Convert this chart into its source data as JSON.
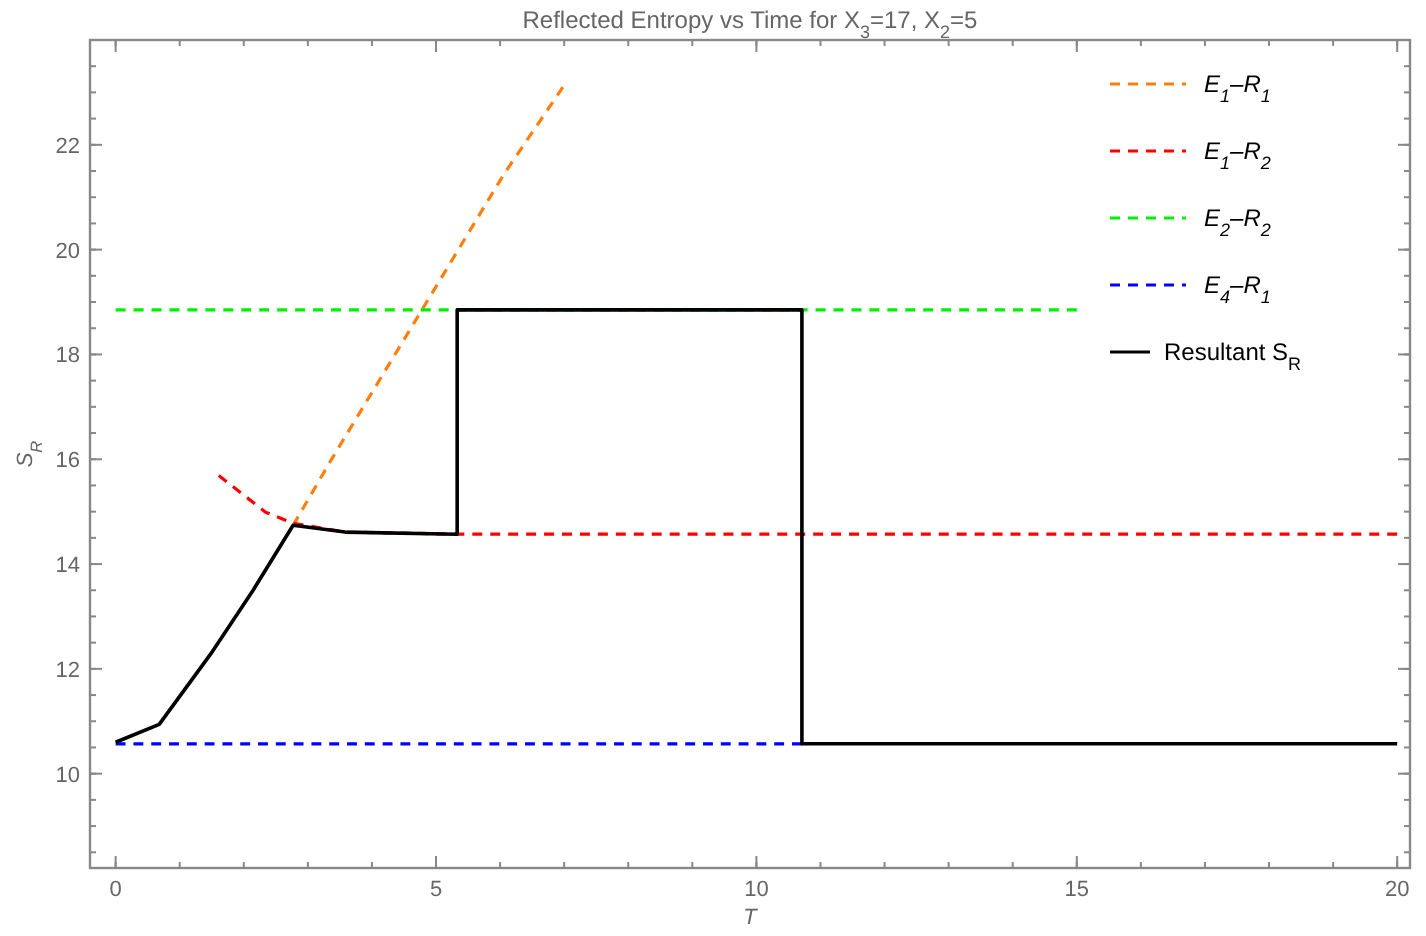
{
  "chart_data": {
    "type": "line",
    "title": "Reflected Entropy vs Time for X$_{3}$=17, X$_{2}$=5",
    "xlabel": "T",
    "ylabel": "S$_{R}$",
    "xlim": [
      -0.4,
      20.2
    ],
    "ylim": [
      8.2,
      24
    ],
    "xticks": [
      0,
      5,
      10,
      15,
      20
    ],
    "yticks": [
      10,
      12,
      14,
      16,
      18,
      20,
      22
    ],
    "grid": false,
    "legend": "top right",
    "series": [
      {
        "name": "E$_{1}$–R$_{1}$",
        "color": "#ff7f0e",
        "line_style": "dashed",
        "x": [
          2.77,
          3.37,
          4.82,
          6.06,
          6.98
        ],
        "values": [
          14.74,
          16.0,
          18.93,
          21.44,
          23.1
        ]
      },
      {
        "name": "E$_{1}$–R$_{2}$",
        "color": "#ff0000",
        "line_style": "dashed",
        "x": [
          1.61,
          2.34,
          2.77,
          3.58,
          5.33,
          20
        ],
        "values": [
          15.69,
          14.99,
          14.78,
          14.61,
          14.57,
          14.57
        ]
      },
      {
        "name": "E$_{2}$–R$_{2}$",
        "color": "#00ee00",
        "line_style": "dashed",
        "x": [
          0,
          15
        ],
        "values": [
          18.85,
          18.85
        ]
      },
      {
        "name": "E$_{4}$–R$_{1}$",
        "color": "#0000ff",
        "line_style": "dashed",
        "x": [
          0,
          10.71
        ],
        "values": [
          10.57,
          10.57
        ]
      },
      {
        "name": "Resultant S$_{R}$",
        "color": "#000000",
        "line_style": "solid",
        "x": [
          0,
          0.68,
          1.51,
          2.13,
          2.77,
          3.58,
          5.33,
          5.33,
          10.71,
          10.71,
          20
        ],
        "values": [
          10.6,
          10.94,
          12.33,
          13.47,
          14.74,
          14.61,
          14.57,
          18.85,
          18.85,
          10.57,
          10.57
        ]
      }
    ]
  }
}
